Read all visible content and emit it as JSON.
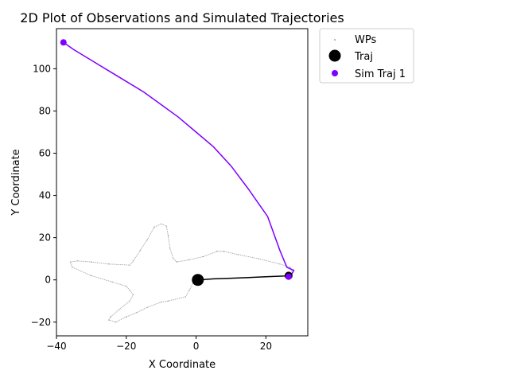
{
  "chart_data": {
    "type": "scatter",
    "title": "2D Plot of Observations and Simulated Trajectories",
    "xlabel": "X Coordinate",
    "ylabel": "Y Coordinate",
    "xlim": [
      -40,
      32
    ],
    "ylim": [
      -26.5,
      119
    ],
    "xticks": [
      -40,
      -20,
      0,
      20
    ],
    "yticks": [
      -20,
      0,
      20,
      40,
      60,
      80,
      100
    ],
    "grid": false,
    "legend_position": "outside-top-right",
    "series": [
      {
        "name": "WPs",
        "kind": "waypoints",
        "color": "#8c8c8c",
        "points": [
          [
            -0.5,
            -0.5
          ],
          [
            -2,
            -5
          ],
          [
            -3,
            -8
          ],
          [
            -8,
            -10
          ],
          [
            -10,
            -10.5
          ],
          [
            -14,
            -13
          ],
          [
            -17,
            -15.5
          ],
          [
            -20,
            -17.5
          ],
          [
            -23,
            -20
          ],
          [
            -25,
            -19
          ],
          [
            -24.5,
            -17.5
          ],
          [
            -22,
            -14
          ],
          [
            -19,
            -10
          ],
          [
            -18,
            -7
          ],
          [
            -19,
            -5
          ],
          [
            -20,
            -3
          ],
          [
            -24,
            -1
          ],
          [
            -30,
            2
          ],
          [
            -35.5,
            6
          ],
          [
            -36,
            8.5
          ],
          [
            -34,
            9
          ],
          [
            -30,
            8.5
          ],
          [
            -25,
            7.5
          ],
          [
            -19,
            7
          ],
          [
            -18,
            9
          ],
          [
            -16,
            14
          ],
          [
            -14,
            19
          ],
          [
            -12,
            25
          ],
          [
            -10,
            26.5
          ],
          [
            -8.5,
            25.5
          ],
          [
            -8,
            21
          ],
          [
            -7.5,
            15
          ],
          [
            -6.5,
            10
          ],
          [
            -5.5,
            8.5
          ],
          [
            -2,
            9.5
          ],
          [
            2,
            11
          ],
          [
            6,
            13.5
          ],
          [
            8,
            13.5
          ],
          [
            12,
            12
          ],
          [
            18,
            10
          ],
          [
            24,
            7.5
          ],
          [
            27,
            6
          ],
          [
            27.5,
            3.5
          ],
          [
            27,
            2
          ]
        ]
      },
      {
        "name": "Traj",
        "kind": "trajectory",
        "color": "#000000",
        "points": [
          [
            0.5,
            0
          ],
          [
            5,
            0.5
          ],
          [
            10,
            0.8
          ],
          [
            15,
            1.1
          ],
          [
            20,
            1.5
          ],
          [
            25,
            1.8
          ],
          [
            26.5,
            2
          ]
        ]
      },
      {
        "name": "Sim Traj 1",
        "kind": "simulated",
        "color": "#7f00ff",
        "points": [
          [
            26.5,
            1.5
          ],
          [
            27.5,
            3
          ],
          [
            28,
            4.5
          ],
          [
            26,
            6
          ],
          [
            24,
            14
          ],
          [
            20.5,
            30
          ],
          [
            15,
            43
          ],
          [
            10,
            54
          ],
          [
            5,
            63
          ],
          [
            0,
            70
          ],
          [
            -5,
            77
          ],
          [
            -10,
            83
          ],
          [
            -15,
            89
          ],
          [
            -20,
            94
          ],
          [
            -25,
            99
          ],
          [
            -30,
            104
          ],
          [
            -35,
            109
          ],
          [
            -38,
            112.5
          ]
        ]
      }
    ]
  }
}
